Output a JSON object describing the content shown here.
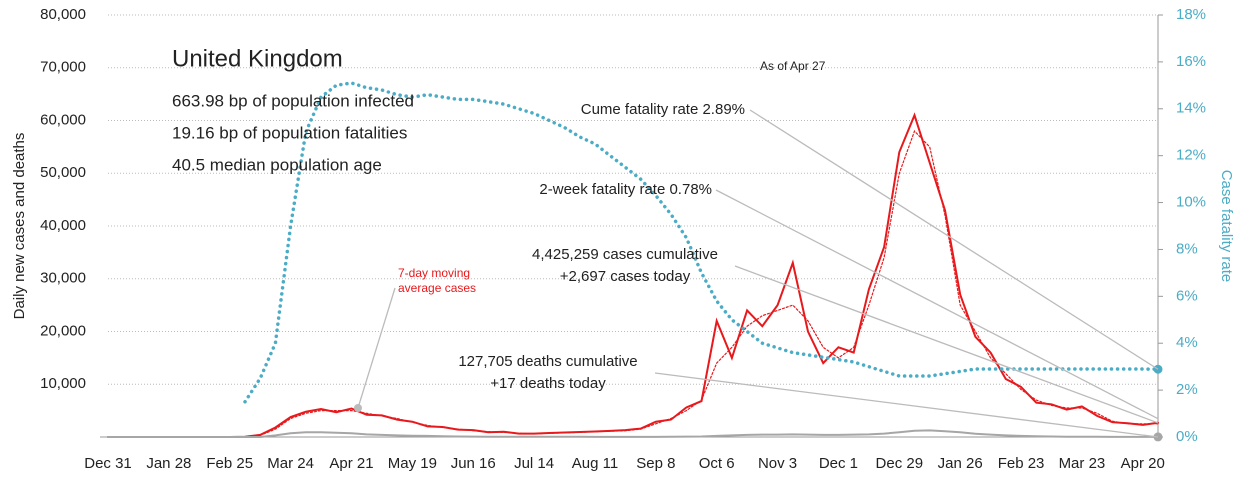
{
  "chart_data": {
    "type": "line",
    "title": "United Kingdom",
    "subtitle_lines": [
      "663.98 bp of population infected",
      "19.16 bp of population fatalities",
      "40.5 median population age"
    ],
    "as_of": "As of Apr 27",
    "ylabel": "Daily new cases and deaths",
    "y2label": "Case fatality rate",
    "annotations": [
      {
        "lines": [
          "Cume fatality rate 2.89%"
        ]
      },
      {
        "lines": [
          "2-week fatality rate 0.78%"
        ]
      },
      {
        "lines": [
          "4,425,259 cases cumulative",
          "+2,697 cases today"
        ]
      },
      {
        "lines": [
          "127,705 deaths cumulative",
          "+17 deaths today"
        ]
      },
      {
        "lines": [
          "7-day moving",
          "average cases"
        ]
      }
    ],
    "categories": [
      "Dec 31",
      null,
      null,
      null,
      "Jan 28",
      null,
      null,
      null,
      "Feb 25",
      null,
      null,
      null,
      "Mar 24",
      null,
      null,
      null,
      "Apr 21",
      null,
      null,
      null,
      "May 19",
      null,
      null,
      null,
      "Jun 16",
      null,
      null,
      null,
      "Jul 14",
      null,
      null,
      null,
      "Aug 11",
      null,
      null,
      null,
      "Sep 8",
      null,
      null,
      null,
      "Oct 6",
      null,
      null,
      null,
      "Nov 3",
      null,
      null,
      null,
      "Dec 1",
      null,
      null,
      null,
      "Dec 29",
      null,
      null,
      null,
      "Jan 26",
      null,
      null,
      null,
      "Feb 23",
      null,
      null,
      null,
      "Mar 23",
      null,
      null,
      null,
      "Apr 20",
      null
    ],
    "series": [
      {
        "color": "#e8191c",
        "style": "solid",
        "values": [
          0,
          0,
          0,
          0,
          0,
          0,
          0,
          0,
          0,
          60,
          400,
          1800,
          3800,
          4800,
          5300,
          4700,
          5400,
          4200,
          4100,
          3300,
          2900,
          2000,
          1900,
          1400,
          1300,
          900,
          1000,
          650,
          650,
          750,
          850,
          950,
          1050,
          1150,
          1300,
          1600,
          2900,
          3300,
          5600,
          6800,
          22000,
          15000,
          24000,
          21000,
          25000,
          33000,
          20000,
          14000,
          17000,
          16000,
          28000,
          36000,
          54000,
          61000,
          52000,
          43000,
          27000,
          19000,
          16000,
          11000,
          9500,
          6500,
          6200,
          5200,
          5800,
          4000,
          2800,
          2600,
          2300,
          2697
        ]
      },
      {
        "color": "#e8191c",
        "style": "dotted",
        "values": [
          0,
          0,
          0,
          0,
          0,
          0,
          0,
          0,
          0,
          50,
          300,
          1500,
          3500,
          4500,
          5000,
          5000,
          5000,
          4500,
          4000,
          3500,
          2800,
          2200,
          1800,
          1500,
          1200,
          1000,
          900,
          700,
          600,
          700,
          800,
          900,
          1000,
          1100,
          1200,
          1500,
          2500,
          3500,
          5000,
          7000,
          14000,
          17000,
          21000,
          23000,
          24000,
          25000,
          22000,
          17000,
          15000,
          17000,
          25000,
          34000,
          50000,
          58000,
          55000,
          42000,
          25000,
          20000,
          15000,
          12000,
          9000,
          7000,
          6000,
          5500,
          5500,
          4500,
          3000,
          2500,
          2500,
          2500
        ]
      },
      {
        "color": "#a6a6a6",
        "style": "solid",
        "values": [
          0,
          0,
          0,
          0,
          0,
          0,
          0,
          0,
          0,
          0,
          0,
          300,
          700,
          900,
          900,
          800,
          700,
          500,
          400,
          300,
          250,
          200,
          150,
          100,
          80,
          50,
          50,
          50,
          50,
          50,
          40,
          30,
          20,
          20,
          20,
          20,
          20,
          40,
          70,
          100,
          200,
          300,
          400,
          450,
          450,
          500,
          450,
          400,
          400,
          450,
          500,
          650,
          900,
          1200,
          1250,
          1100,
          900,
          600,
          450,
          300,
          200,
          150,
          100,
          60,
          50,
          30,
          20,
          20,
          17,
          17
        ]
      },
      {
        "color": "#4bacc6",
        "style": "dotted",
        "axis": "y2",
        "values": [
          null,
          null,
          null,
          null,
          null,
          null,
          null,
          null,
          null,
          1.5,
          2.5,
          4,
          9,
          13,
          14.5,
          15,
          15.1,
          14.9,
          14.8,
          14.6,
          14.5,
          14.6,
          14.5,
          14.4,
          14.4,
          14.3,
          14.2,
          14,
          13.8,
          13.5,
          13.2,
          12.8,
          12.5,
          12,
          11.5,
          11,
          10.3,
          9.5,
          8.5,
          7,
          5.8,
          5,
          4.5,
          4,
          3.8,
          3.6,
          3.5,
          3.4,
          3.3,
          3.2,
          3,
          2.8,
          2.6,
          2.6,
          2.6,
          2.7,
          2.8,
          2.9,
          2.9,
          2.9,
          2.9,
          2.9,
          2.9,
          2.9,
          2.9,
          2.9,
          2.9,
          2.9,
          2.9,
          2.89
        ]
      }
    ],
    "ylim": [
      0,
      80000
    ],
    "yticks": [
      {
        "value": 10000,
        "label": "10,000"
      },
      {
        "value": 20000,
        "label": "20,000"
      },
      {
        "value": 30000,
        "label": "30,000"
      },
      {
        "value": 40000,
        "label": "40,000"
      },
      {
        "value": 50000,
        "label": "50,000"
      },
      {
        "value": 60000,
        "label": "60,000"
      },
      {
        "value": 70000,
        "label": "70,000"
      },
      {
        "value": 80000,
        "label": "80,000"
      }
    ],
    "y2lim": [
      0,
      18
    ],
    "y2ticks": [
      {
        "value": 0,
        "label": "0%"
      },
      {
        "value": 2,
        "label": "2%"
      },
      {
        "value": 4,
        "label": "4%"
      },
      {
        "value": 6,
        "label": "6%"
      },
      {
        "value": 8,
        "label": "8%"
      },
      {
        "value": 10,
        "label": "10%"
      },
      {
        "value": 12,
        "label": "12%"
      },
      {
        "value": 14,
        "label": "14%"
      },
      {
        "value": 16,
        "label": "16%"
      },
      {
        "value": 18,
        "label": "18%"
      }
    ],
    "grid": true
  }
}
